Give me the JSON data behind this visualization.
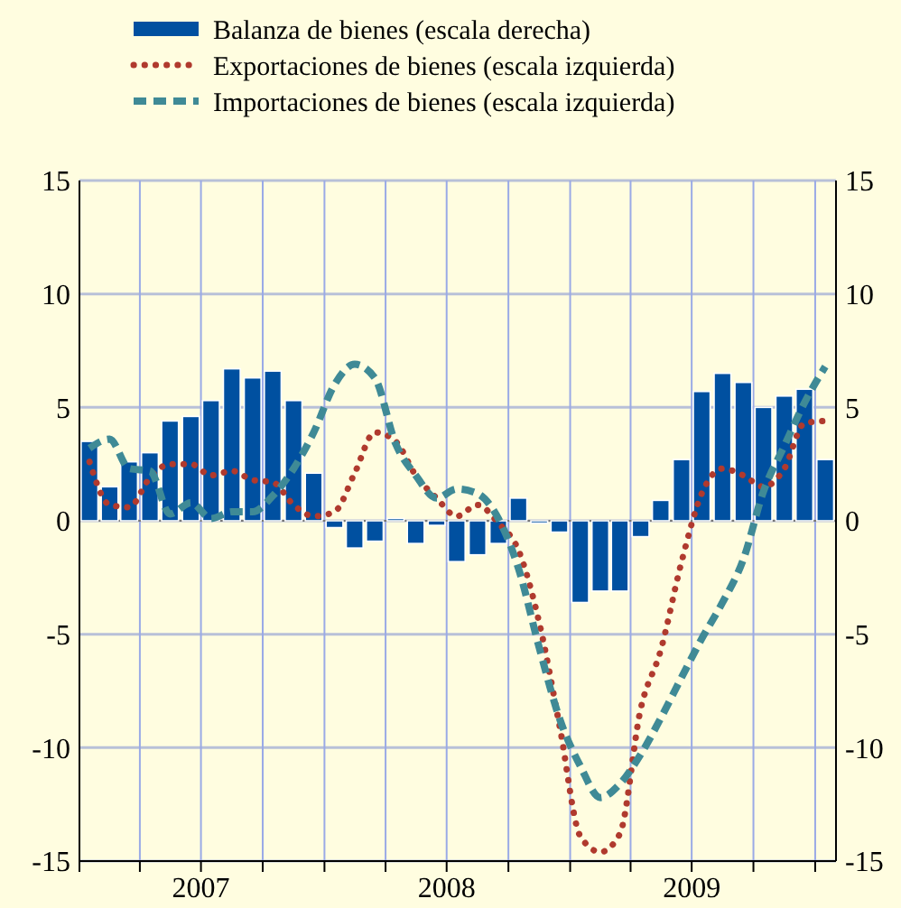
{
  "chart_data": {
    "type": "bar",
    "x": [
      "2007-01-16",
      "2007-02-15",
      "2007-03-16",
      "2007-04-16",
      "2007-05-16",
      "2007-06-16",
      "2007-07-16",
      "2007-08-16",
      "2007-09-16",
      "2007-10-16",
      "2007-11-16",
      "2007-12-16",
      "2008-01-16",
      "2008-02-15",
      "2008-03-16",
      "2008-04-16",
      "2008-05-16",
      "2008-06-16",
      "2008-07-16",
      "2008-08-16",
      "2008-09-16",
      "2008-10-16",
      "2008-11-16",
      "2008-12-16",
      "2009-01-16",
      "2009-02-15",
      "2009-03-16",
      "2009-04-16",
      "2009-05-16",
      "2009-06-16",
      "2009-07-16",
      "2009-08-16",
      "2009-09-16",
      "2009-10-16",
      "2009-11-16",
      "2009-12-16",
      "2010-01-16"
    ],
    "series": [
      {
        "name": "Balanza de bienes (escala derecha)",
        "axis": "y2",
        "color": "#0050a0",
        "values": [
          3.5,
          1.5,
          2.6,
          3.0,
          4.4,
          4.6,
          5.3,
          6.7,
          6.3,
          6.6,
          5.3,
          2.1,
          -0.3,
          -1.2,
          -0.9,
          0.1,
          -1.0,
          -0.2,
          -1.8,
          -1.5,
          -1.0,
          1.0,
          -0.1,
          -0.5,
          -3.6,
          -3.1,
          -3.1,
          -0.7,
          0.9,
          2.7,
          5.7,
          6.5,
          6.1,
          5.0,
          5.5,
          5.8,
          2.7
        ]
      },
      {
        "name": "Exportaciones de bienes (escala izquierda)",
        "type": "line",
        "line_style": "dotted",
        "color": "#b03a2e",
        "values": [
          2.6,
          0.7,
          0.6,
          1.9,
          2.5,
          2.5,
          2.0,
          2.2,
          1.8,
          1.7,
          0.7,
          0.2,
          0.4,
          2.1,
          3.9,
          3.5,
          2.0,
          1.0,
          0.2,
          0.7,
          -0.1,
          -1.3,
          -4.5,
          -9.0,
          -13.9,
          -14.6,
          -13.8,
          -8.3,
          -5.7,
          -1.8,
          1.2,
          2.3,
          2.0,
          1.5,
          2.3,
          4.3,
          4.4
        ]
      },
      {
        "name": "Importaciones de bienes (escala izquierda)",
        "type": "line",
        "line_style": "dashed",
        "color": "#3f8a96",
        "values": [
          3.2,
          3.6,
          2.3,
          2.2,
          0.3,
          0.8,
          0.1,
          0.4,
          0.4,
          1.1,
          2.3,
          3.9,
          6.0,
          6.9,
          6.3,
          3.4,
          2.0,
          1.0,
          1.4,
          1.2,
          0.1,
          -2.1,
          -5.6,
          -8.7,
          -10.8,
          -12.2,
          -11.6,
          -10.3,
          -8.7,
          -6.9,
          -5.2,
          -3.6,
          -1.7,
          1.3,
          3.3,
          5.2,
          6.8
        ]
      }
    ],
    "xlim": [
      "2007-01",
      "2010-02"
    ],
    "xticks": [
      {
        "value": "2007-01",
        "label": null
      },
      {
        "value": "2007-04",
        "label": null
      },
      {
        "value": "2007-07",
        "label": "2007"
      },
      {
        "value": "2007-10",
        "label": null
      },
      {
        "value": "2008-01",
        "label": null
      },
      {
        "value": "2008-04",
        "label": null
      },
      {
        "value": "2008-07",
        "label": "2008"
      },
      {
        "value": "2008-10",
        "label": null
      },
      {
        "value": "2009-01",
        "label": null
      },
      {
        "value": "2009-04",
        "label": null
      },
      {
        "value": "2009-07",
        "label": "2009"
      },
      {
        "value": "2009-10",
        "label": null
      },
      {
        "value": "2010-01",
        "label": null
      }
    ],
    "ylim": [
      -15,
      15
    ],
    "yticks": [
      -15,
      -10,
      -5,
      0,
      5,
      10,
      15
    ],
    "y2lim": [
      -15,
      15
    ],
    "y2ticks": [
      -15,
      -10,
      -5,
      0,
      5,
      10,
      15
    ],
    "grid": true,
    "legend": "top"
  }
}
